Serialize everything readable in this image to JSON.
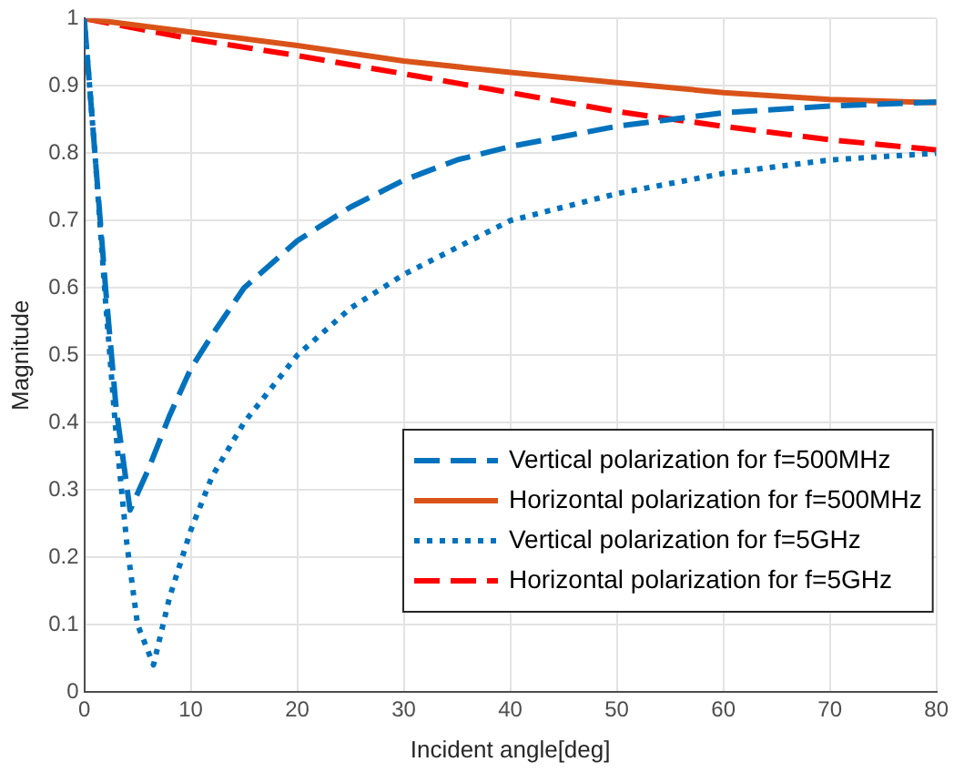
{
  "chart_data": {
    "type": "line",
    "xlabel": "Incident angle[deg]",
    "ylabel": "Magnitude",
    "xlim": [
      0,
      80
    ],
    "xticks": [
      0,
      10,
      20,
      30,
      40,
      50,
      60,
      70,
      80
    ],
    "ylim": [
      0,
      1
    ],
    "yticks": [
      0,
      0.1,
      0.2,
      0.3,
      0.4,
      0.5,
      0.6,
      0.7,
      0.8,
      0.9,
      1
    ],
    "grid": true,
    "legend": "bottom right",
    "marker": "none",
    "series": [
      {
        "name": "Vertical polarization for f=500MHz",
        "color": "#0072bd",
        "line_style": "dashed",
        "x": [
          0,
          1,
          2,
          3,
          4.3,
          6,
          8,
          10,
          12,
          15,
          20,
          25,
          30,
          35,
          40,
          50,
          60,
          70,
          80
        ],
        "values": [
          1,
          0.8,
          0.6,
          0.42,
          0.27,
          0.33,
          0.41,
          0.48,
          0.53,
          0.6,
          0.67,
          0.72,
          0.76,
          0.79,
          0.81,
          0.84,
          0.86,
          0.87,
          0.876
        ]
      },
      {
        "name": "Horizontal polarization for f=500MHz",
        "color": "#d95319",
        "line_style": "solid",
        "x": [
          0,
          10,
          20,
          30,
          40,
          50,
          60,
          70,
          80
        ],
        "values": [
          1,
          0.98,
          0.96,
          0.937,
          0.92,
          0.905,
          0.89,
          0.88,
          0.875
        ]
      },
      {
        "name": "Vertical polarization for f=5GHz",
        "color": "#0072bd",
        "line_style": "dotted",
        "x": [
          0,
          1,
          2,
          3,
          4,
          5,
          6.5,
          8,
          10,
          12,
          15,
          20,
          25,
          30,
          40,
          50,
          60,
          70,
          80
        ],
        "values": [
          1,
          0.8,
          0.58,
          0.38,
          0.22,
          0.1,
          0.04,
          0.14,
          0.24,
          0.32,
          0.4,
          0.5,
          0.57,
          0.62,
          0.7,
          0.74,
          0.77,
          0.79,
          0.8
        ]
      },
      {
        "name": "Horizontal polarization for f=5GHz",
        "color": "#ff0000",
        "line_style": "dashed",
        "x": [
          0,
          10,
          20,
          30,
          40,
          50,
          60,
          70,
          80
        ],
        "values": [
          1,
          0.97,
          0.945,
          0.918,
          0.89,
          0.862,
          0.84,
          0.82,
          0.805
        ]
      }
    ]
  }
}
